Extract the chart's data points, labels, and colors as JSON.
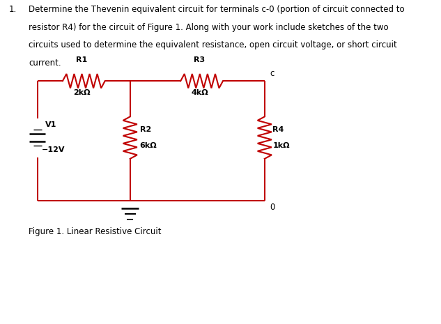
{
  "background_color": "#ffffff",
  "circuit_color": "#c00000",
  "text_color": "#000000",
  "fig_width": 6.33,
  "fig_height": 4.65,
  "dpi": 100,
  "title_number": "1.",
  "title_lines": [
    "Determine the Thevenin equivalent circuit for terminals c-0 (portion of circuit connected to",
    "resistor R4) for the circuit of Figure 1. Along with your work include sketches of the two",
    "circuits used to determine the equivalent resistance, open circuit voltage, or short circuit",
    "current."
  ],
  "figure_caption": "Figure 1. Linear Resistive Circuit",
  "L": 0.085,
  "R": 0.6,
  "T": 0.75,
  "B": 0.38,
  "M": 0.295,
  "R4x": 0.6,
  "r1_label": "R1",
  "r1_value": "2kΩ",
  "r2_label": "R2",
  "r2_value": "6kΩ",
  "r3_label": "R3",
  "r3_value": "4kΩ",
  "r4_label": "R4",
  "r4_value": "1kΩ",
  "v1_label": "V1",
  "v1_value": "12V",
  "node_c": "c",
  "node_0": "0"
}
